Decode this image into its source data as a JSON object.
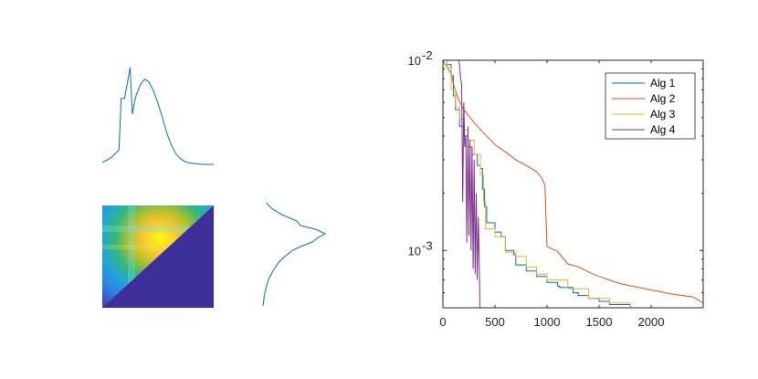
{
  "chart_data": [
    {
      "type": "line",
      "panel": "top-left",
      "series": [
        {
          "x": [
            0,
            8,
            15,
            17,
            20,
            25,
            27,
            30,
            34,
            38,
            42,
            46,
            50,
            54,
            58,
            62,
            66,
            70,
            74,
            78,
            82,
            86,
            90,
            95,
            100
          ],
          "y": [
            0.02,
            0.07,
            0.15,
            0.68,
            0.68,
            1.0,
            0.52,
            0.7,
            0.82,
            0.88,
            0.85,
            0.76,
            0.63,
            0.48,
            0.32,
            0.2,
            0.11,
            0.06,
            0.03,
            0.015,
            0.01,
            0.005,
            0.0,
            0.0,
            0.0
          ],
          "color": "#0072BD"
        }
      ],
      "axes_visible": false
    },
    {
      "type": "heatmap",
      "panel": "bottom-left",
      "colormap": "parula",
      "mask": "upper-triangle",
      "axes_visible": false
    },
    {
      "type": "line",
      "panel": "bottom-middle",
      "orientation": "vertical",
      "series": [
        {
          "y": [
            0,
            6,
            12,
            18,
            22,
            26,
            30,
            34,
            38,
            42,
            46,
            52,
            58,
            66,
            74,
            82,
            90,
            100
          ],
          "x": [
            0.05,
            0.15,
            0.32,
            0.55,
            0.6,
            0.86,
            1.0,
            0.88,
            0.8,
            0.62,
            0.48,
            0.35,
            0.25,
            0.16,
            0.09,
            0.05,
            0.02,
            0.0
          ],
          "color": "#0072BD"
        }
      ],
      "axes_visible": false
    },
    {
      "type": "line",
      "panel": "right",
      "yscale": "log",
      "xlim": [
        0,
        2500
      ],
      "ylim": [
        0.0005,
        0.01
      ],
      "xticks": [
        "0",
        "500",
        "1000",
        "1500",
        "2000"
      ],
      "yticks": [
        {
          "base": "10",
          "exp": "-2",
          "value": 0.01
        },
        {
          "base": "10",
          "exp": "-3",
          "value": 0.001
        }
      ],
      "legend_position": "top-right",
      "series": [
        {
          "name": "Alg 1",
          "color": "#0072BD",
          "x": [
            0,
            40,
            80,
            100,
            120,
            160,
            200,
            240,
            280,
            330,
            360,
            380,
            400,
            420,
            500,
            560,
            600,
            680,
            700,
            800,
            900,
            1000,
            1100,
            1120,
            1250,
            1300,
            1400,
            1500,
            1600,
            1800
          ],
          "y": [
            0.01,
            0.0095,
            0.0083,
            0.0065,
            0.0055,
            0.0045,
            0.004,
            0.0035,
            0.0032,
            0.0028,
            0.0027,
            0.0021,
            0.0017,
            0.0014,
            0.00125,
            0.00118,
            0.001,
            0.00095,
            0.00084,
            0.00078,
            0.00073,
            0.00068,
            0.00065,
            0.00064,
            0.0006,
            0.00058,
            0.00056,
            0.00054,
            0.00052,
            0.0005
          ]
        },
        {
          "name": "Alg 2",
          "color": "#D95319",
          "x": [
            0,
            80,
            100,
            150,
            200,
            300,
            400,
            500,
            600,
            700,
            800,
            900,
            950,
            980,
            1000,
            1100,
            1200,
            1300,
            1400,
            1500,
            1700,
            2000,
            2200,
            2400,
            2500
          ],
          "y": [
            0.01,
            0.0085,
            0.0075,
            0.0062,
            0.0055,
            0.0047,
            0.0041,
            0.0036,
            0.0033,
            0.003,
            0.0028,
            0.0026,
            0.0024,
            0.0022,
            0.00105,
            0.00099,
            0.00085,
            0.00082,
            0.00077,
            0.00073,
            0.00067,
            0.00062,
            0.00059,
            0.00057,
            0.00053
          ]
        },
        {
          "name": "Alg 3",
          "color": "#EDB120",
          "x": [
            0,
            40,
            80,
            120,
            160,
            200,
            240,
            300,
            360,
            390,
            410,
            500,
            600,
            700,
            800,
            900,
            1000,
            1200,
            1400,
            1600,
            1800
          ],
          "y": [
            0.01,
            0.0092,
            0.007,
            0.0057,
            0.0049,
            0.0043,
            0.0038,
            0.0032,
            0.0025,
            0.0018,
            0.0013,
            0.00118,
            0.00098,
            0.00093,
            0.00082,
            0.00075,
            0.0007,
            0.00063,
            0.00056,
            0.00053,
            0.0005
          ]
        },
        {
          "name": "Alg 4",
          "color": "#7E2F8E",
          "x": [
            150,
            160,
            170,
            180,
            190,
            200,
            210,
            220,
            230,
            240,
            250,
            260,
            270,
            280,
            290,
            300,
            310,
            320,
            330,
            340,
            350,
            355
          ],
          "y": [
            0.01,
            0.0095,
            0.008,
            0.0075,
            0.0018,
            0.006,
            0.0035,
            0.004,
            0.0011,
            0.0045,
            0.0012,
            0.0038,
            0.001,
            0.0035,
            0.0008,
            0.003,
            0.00075,
            0.002,
            0.0007,
            0.0015,
            0.0008,
            0.0005
          ]
        }
      ]
    }
  ]
}
